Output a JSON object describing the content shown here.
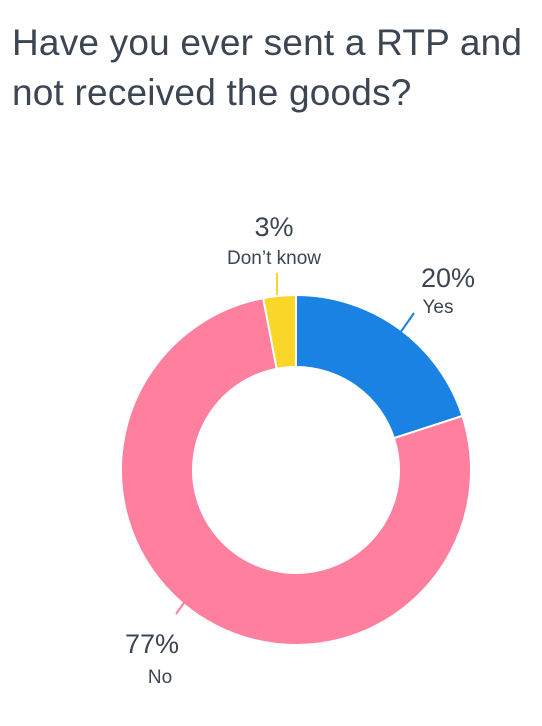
{
  "chart_data": {
    "type": "pie",
    "title": "Have you ever sent a RTP and not received the goods?",
    "categories": [
      "Yes",
      "No",
      "Don’t know"
    ],
    "values": [
      20,
      77,
      3
    ],
    "value_labels": [
      "20%",
      "77%",
      "3%"
    ],
    "colors": [
      "#1a82e2",
      "#ff7f9f",
      "#f9d628"
    ],
    "donut": true
  },
  "colors": {
    "text": "#3b4652",
    "background": "#ffffff"
  }
}
